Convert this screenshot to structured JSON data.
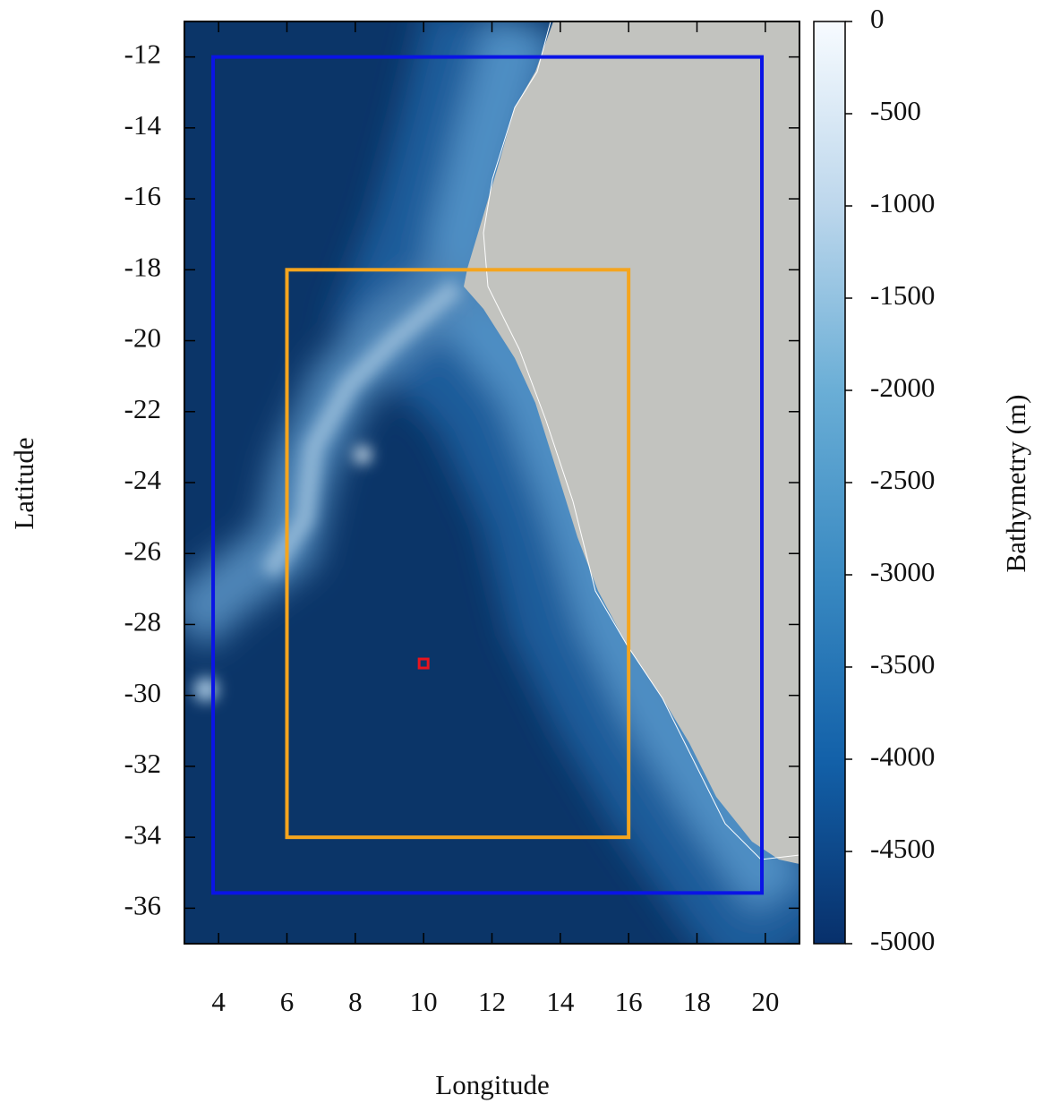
{
  "chart_data": {
    "type": "map",
    "x_label": "Longitude",
    "y_label": "Latitude",
    "xlim": [
      3,
      21
    ],
    "ylim": [
      -37,
      -11
    ],
    "xticks": [
      4,
      6,
      8,
      10,
      12,
      14,
      16,
      18,
      20
    ],
    "yticks": [
      -12,
      -14,
      -16,
      -18,
      -20,
      -22,
      -24,
      -26,
      -28,
      -30,
      -32,
      -34,
      -36
    ],
    "boxes": [
      {
        "color": "#0a14e6",
        "lon": [
          3.84,
          19.9
        ],
        "lat": [
          -35.57,
          -12
        ]
      },
      {
        "color": "#f5a51e",
        "lon": [
          6,
          16
        ],
        "lat": [
          -34,
          -18
        ]
      }
    ],
    "point": {
      "color": "#e8141e",
      "lon": 10,
      "lat": -29.1
    },
    "colorbar": {
      "label": "Bathymetry (m)",
      "lim": [
        -5000,
        0
      ],
      "ticks": [
        0,
        -500,
        -1000,
        -1500,
        -2000,
        -2500,
        -3000,
        -3500,
        -4000,
        -4500,
        -5000
      ]
    }
  }
}
